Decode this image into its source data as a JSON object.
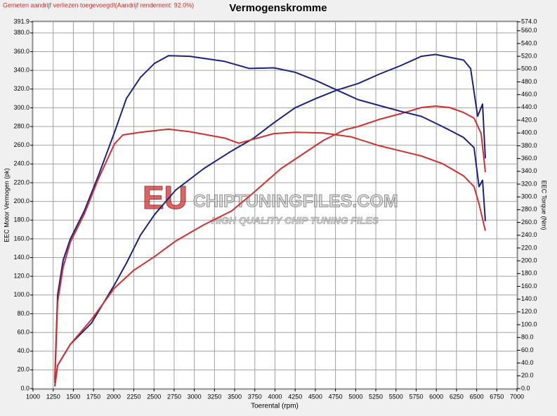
{
  "chart_data": {
    "type": "line",
    "title": "Vermogenskromme",
    "note": "Gemeten aandrijf verliezen toegevoegd!(Aandrijf rendement: 92.0%)",
    "watermark": {
      "brand": "EU",
      "site": "CHIPTUNINGFILES.COM",
      "tagline": "HIGH QUALITY CHIP TUNING FILES"
    },
    "xlabel": "Toerental (rpm)",
    "ylabel": "EEC Motor Vermogen (pk)",
    "y2label": "EEC Torque (Nm)",
    "xlim": [
      1000,
      7000
    ],
    "xticks": [
      1000,
      1250,
      1500,
      1750,
      2000,
      2250,
      2500,
      2750,
      3000,
      3250,
      3500,
      3750,
      4000,
      4250,
      4500,
      4750,
      5000,
      5250,
      5500,
      5750,
      6000,
      6250,
      6500,
      6750,
      7000
    ],
    "ylim": [
      0,
      391.9
    ],
    "yticks": [
      {
        "value": 0,
        "label": "0.0"
      },
      {
        "value": 20,
        "label": "20.0"
      },
      {
        "value": 40,
        "label": "40.0"
      },
      {
        "value": 60,
        "label": "60.0"
      },
      {
        "value": 80,
        "label": "80.0"
      },
      {
        "value": 100,
        "label": "100.0"
      },
      {
        "value": 120,
        "label": "120.0"
      },
      {
        "value": 140,
        "label": "140.0"
      },
      {
        "value": 160,
        "label": "160.0"
      },
      {
        "value": 180,
        "label": "180.0"
      },
      {
        "value": 200,
        "label": "200.0"
      },
      {
        "value": 220,
        "label": "220.0"
      },
      {
        "value": 240,
        "label": "240.0"
      },
      {
        "value": 260,
        "label": "260.0"
      },
      {
        "value": 280,
        "label": "280.0"
      },
      {
        "value": 300,
        "label": "300.0"
      },
      {
        "value": 320,
        "label": "320.0"
      },
      {
        "value": 340,
        "label": "340.0"
      },
      {
        "value": 360,
        "label": "360.0"
      },
      {
        "value": 380,
        "label": "380.0"
      },
      391.9
    ],
    "y2lim": [
      0,
      574
    ],
    "y2ticks": [
      {
        "value": 0,
        "label": "0.0"
      },
      {
        "value": 20,
        "label": "20.0"
      },
      {
        "value": 40,
        "label": "40.0"
      },
      {
        "value": 60,
        "label": "60.0"
      },
      {
        "value": 80,
        "label": "80.0"
      },
      {
        "value": 100,
        "label": "100.0"
      },
      {
        "value": 120,
        "label": "120.0"
      },
      {
        "value": 140,
        "label": "140.0"
      },
      {
        "value": 160,
        "label": "160.0"
      },
      {
        "value": 180,
        "label": "180.0"
      },
      {
        "value": 200,
        "label": "200.0"
      },
      {
        "value": 220,
        "label": "220.0"
      },
      {
        "value": 240,
        "label": "240.0"
      },
      {
        "value": 260,
        "label": "260.0"
      },
      {
        "value": 280,
        "label": "280.0"
      },
      {
        "value": 300,
        "label": "300.0"
      },
      {
        "value": 320,
        "label": "320.0"
      },
      {
        "value": 340,
        "label": "340.0"
      },
      {
        "value": 360,
        "label": "360.0"
      },
      {
        "value": 380,
        "label": "380.0"
      },
      {
        "value": 400,
        "label": "400.0"
      },
      {
        "value": 420,
        "label": "420.0"
      },
      {
        "value": 440,
        "label": "440.0"
      },
      {
        "value": 460,
        "label": "460.0"
      },
      {
        "value": 480,
        "label": "480.0"
      },
      {
        "value": 500,
        "label": "500.0"
      },
      {
        "value": 520,
        "label": "520.0"
      },
      {
        "value": 540,
        "label": "540.0"
      },
      {
        "value": 560,
        "label": "560.0"
      },
      {
        "value": 574,
        "label": "574.0"
      }
    ],
    "grid": true,
    "series": [
      {
        "color": "#1a237e",
        "axis": "y",
        "x": [
          1270,
          1305,
          1462,
          1723,
          2010,
          2158,
          2332,
          2507,
          2768,
          3116,
          3464,
          3726,
          3987,
          4248,
          4510,
          4771,
          5032,
          5293,
          5555,
          5816,
          5990,
          6164,
          6338,
          6425,
          6512,
          6573,
          6608
        ],
        "values": [
          2.3,
          24.8,
          47.3,
          69.8,
          111,
          134,
          164,
          186,
          212,
          235,
          254,
          267,
          284,
          300,
          310,
          319,
          326,
          336,
          345,
          355,
          357,
          354,
          351,
          342,
          291,
          304,
          246
        ]
      },
      {
        "color": "#d32f2f",
        "axis": "y",
        "x": [
          1270,
          1305,
          1462,
          1723,
          2010,
          2245,
          2507,
          2768,
          3116,
          3464,
          3726,
          4074,
          4335,
          4597,
          4858,
          5032,
          5293,
          5555,
          5816,
          5990,
          6164,
          6338,
          6468,
          6556,
          6608
        ],
        "values": [
          2.3,
          24.8,
          47.3,
          73.6,
          107.4,
          126.1,
          141.1,
          157.6,
          174.9,
          189.9,
          208.7,
          235,
          250,
          265,
          276.3,
          280,
          287.6,
          293.6,
          300.3,
          301.8,
          300.3,
          295,
          289,
          272.5,
          231.2
        ]
      },
      {
        "color": "#1a237e",
        "axis": "y2",
        "x": [
          1270,
          1305,
          1374,
          1462,
          1636,
          1810,
          2010,
          2158,
          2332,
          2507,
          2681,
          2942,
          3377,
          3682,
          3987,
          4248,
          4510,
          4771,
          5032,
          5293,
          5555,
          5816,
          6077,
          6338,
          6468,
          6530,
          6573,
          6608
        ],
        "values": [
          14.3,
          146,
          201,
          234,
          278,
          333,
          401,
          454,
          487,
          509,
          521,
          520,
          512,
          501,
          502,
          495,
          482,
          467,
          452,
          443,
          434,
          426,
          410,
          393,
          377,
          316,
          326,
          262
        ]
      },
      {
        "color": "#d32f2f",
        "axis": "y2",
        "x": [
          1270,
          1305,
          1374,
          1462,
          1636,
          1810,
          2010,
          2115,
          2332,
          2681,
          2942,
          3377,
          3552,
          3726,
          3987,
          4248,
          4597,
          4945,
          5293,
          5555,
          5816,
          6077,
          6338,
          6468,
          6530,
          6608
        ],
        "values": [
          8.8,
          135,
          190,
          229,
          273,
          328,
          383,
          397,
          401,
          406,
          402,
          392,
          384,
          390,
          399,
          401,
          400,
          394,
          380,
          372,
          364,
          352,
          333,
          316,
          289,
          247
        ]
      }
    ]
  }
}
